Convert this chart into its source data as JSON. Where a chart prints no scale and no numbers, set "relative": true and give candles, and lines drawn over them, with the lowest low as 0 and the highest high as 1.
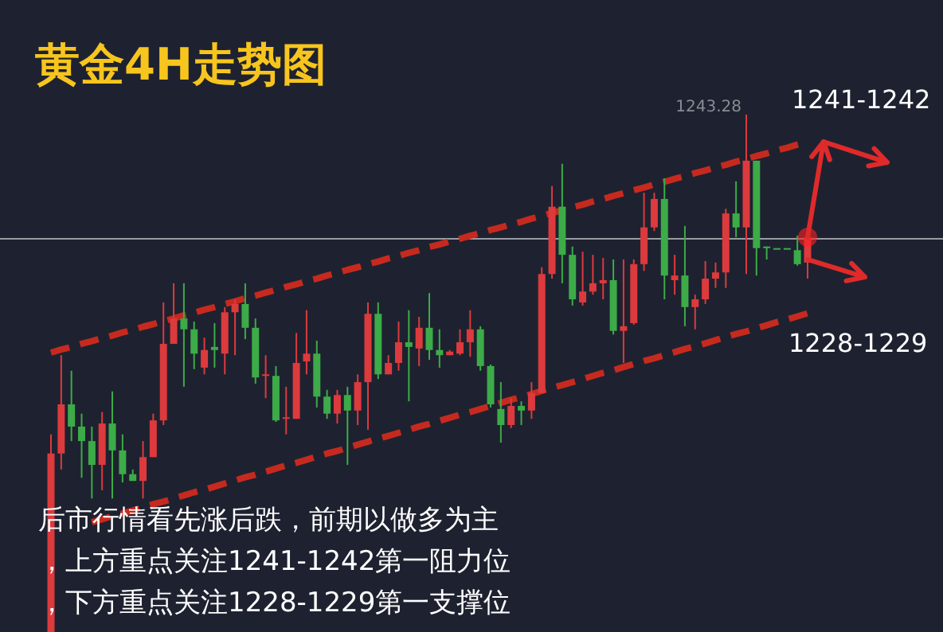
{
  "chart_data": {
    "type": "candlestick",
    "relative": true,
    "title": "黄金4H走势图",
    "tick_labels": false,
    "categories": [
      null,
      null,
      null,
      null,
      null,
      null,
      null,
      null,
      null,
      null,
      null,
      null,
      null,
      null,
      null,
      null,
      null,
      null,
      null,
      null,
      null,
      null,
      null,
      null,
      null,
      null,
      null,
      null,
      null,
      null,
      null,
      null,
      null,
      null,
      null,
      null,
      null,
      null,
      null,
      null,
      null,
      null,
      null,
      null,
      null,
      null,
      null,
      null,
      null,
      null,
      null,
      null,
      null,
      null,
      null,
      null,
      null,
      null,
      null,
      null,
      null,
      null,
      null,
      null,
      null,
      null,
      null,
      null,
      null,
      null,
      null,
      null,
      null,
      null,
      null
    ],
    "ohlc": [
      [
        0,
        0.382,
        0,
        0.345
      ],
      [
        0.345,
        0.535,
        0.314,
        0.44
      ],
      [
        0.44,
        0.505,
        0.369,
        0.397
      ],
      [
        0.397,
        0.422,
        0.298,
        0.369
      ],
      [
        0.369,
        0.397,
        0.258,
        0.323
      ],
      [
        0.323,
        0.425,
        0.274,
        0.403
      ],
      [
        0.403,
        0.465,
        0.258,
        0.351
      ],
      [
        0.351,
        0.382,
        0.289,
        0.305
      ],
      [
        0.305,
        0.314,
        0.292,
        0.292
      ],
      [
        0.292,
        0.369,
        0.258,
        0.338
      ],
      [
        0.338,
        0.422,
        0.338,
        0.409
      ],
      [
        0.409,
        0.637,
        0.4,
        0.557
      ],
      [
        0.557,
        0.674,
        0.557,
        0.606
      ],
      [
        0.606,
        0.674,
        0.474,
        0.585
      ],
      [
        0.585,
        0.6,
        0.508,
        0.538
      ],
      [
        0.511,
        0.569,
        0.498,
        0.545
      ],
      [
        0.551,
        0.597,
        0.511,
        0.545
      ],
      [
        0.538,
        0.628,
        0.498,
        0.618
      ],
      [
        0.618,
        0.643,
        0.535,
        0.634
      ],
      [
        0.634,
        0.674,
        0.566,
        0.588
      ],
      [
        0.588,
        0.606,
        0.48,
        0.492
      ],
      [
        0.495,
        0.535,
        0.452,
        0.498
      ],
      [
        0.495,
        0.514,
        0.406,
        0.409
      ],
      [
        0.412,
        0.474,
        0.382,
        0.415
      ],
      [
        0.412,
        0.578,
        0.412,
        0.52
      ],
      [
        0.523,
        0.622,
        0.498,
        0.538
      ],
      [
        0.538,
        0.563,
        0.434,
        0.455
      ],
      [
        0.455,
        0.468,
        0.412,
        0.422
      ],
      [
        0.422,
        0.468,
        0.403,
        0.458
      ],
      [
        0.458,
        0.474,
        0.323,
        0.428
      ],
      [
        0.428,
        0.498,
        0.4,
        0.483
      ],
      [
        0.483,
        0.637,
        0.391,
        0.615
      ],
      [
        0.615,
        0.637,
        0.489,
        0.498
      ],
      [
        0.498,
        0.535,
        0.498,
        0.52
      ],
      [
        0.52,
        0.6,
        0.505,
        0.56
      ],
      [
        0.56,
        0.622,
        0.446,
        0.551
      ],
      [
        0.548,
        0.609,
        0.514,
        0.588
      ],
      [
        0.588,
        0.655,
        0.526,
        0.545
      ],
      [
        0.545,
        0.585,
        0.511,
        0.535
      ],
      [
        0.535,
        0.545,
        0.535,
        0.542
      ],
      [
        0.538,
        0.585,
        0.535,
        0.56
      ],
      [
        0.56,
        0.622,
        0.532,
        0.585
      ],
      [
        0.585,
        0.591,
        0.505,
        0.514
      ],
      [
        0.514,
        0.517,
        0.434,
        0.44
      ],
      [
        0.431,
        0.483,
        0.366,
        0.4
      ],
      [
        0.4,
        0.452,
        0.394,
        0.437
      ],
      [
        0.437,
        0.446,
        0.4,
        0.428
      ],
      [
        0.428,
        0.483,
        0.412,
        0.462
      ],
      [
        0.462,
        0.705,
        0.462,
        0.692
      ],
      [
        0.692,
        0.862,
        0.683,
        0.822
      ],
      [
        0.822,
        0.905,
        0.674,
        0.729
      ],
      [
        0.729,
        0.745,
        0.631,
        0.643
      ],
      [
        0.637,
        0.735,
        0.631,
        0.658
      ],
      [
        0.658,
        0.729,
        0.652,
        0.674
      ],
      [
        0.674,
        0.723,
        0.643,
        0.68
      ],
      [
        0.68,
        0.72,
        0.575,
        0.582
      ],
      [
        0.582,
        0.72,
        0.52,
        0.591
      ],
      [
        0.597,
        0.72,
        0.594,
        0.711
      ],
      [
        0.711,
        0.849,
        0.698,
        0.782
      ],
      [
        0.782,
        0.849,
        0.775,
        0.837
      ],
      [
        0.837,
        0.877,
        0.643,
        0.689
      ],
      [
        0.68,
        0.729,
        0.652,
        0.689
      ],
      [
        0.689,
        0.785,
        0.591,
        0.628
      ],
      [
        0.628,
        0.652,
        0.585,
        0.643
      ],
      [
        0.643,
        0.717,
        0.634,
        0.683
      ],
      [
        0.683,
        0.714,
        0.665,
        0.695
      ],
      [
        0.695,
        0.818,
        0.665,
        0.809
      ],
      [
        0.809,
        0.871,
        0.763,
        0.782
      ],
      [
        0.782,
        1,
        0.692,
        0.911
      ],
      [
        0.911,
        0.911,
        0.689,
        0.742
      ],
      [
        0.745,
        0.745,
        0.72,
        0.742
      ],
      [
        0.742,
        0.742,
        0.742,
        0.742
      ],
      [
        0.742,
        0.742,
        0.742,
        0.742
      ],
      [
        0.738,
        0.766,
        0.708,
        0.711
      ],
      [
        0.714,
        0.769,
        0.683,
        0.763
      ]
    ],
    "colors": [
      "#dc3a3d",
      "#dc3a3d",
      "#3cab48",
      "#3cab48",
      "#3cab48",
      "#dc3a3d",
      "#3cab48",
      "#3cab48",
      "#3cab48",
      "#dc3a3d",
      "#dc3a3d",
      "#dc3a3d",
      "#dc3a3d",
      "#3cab48",
      "#3cab48",
      "#dc3a3d",
      "#3cab48",
      "#dc3a3d",
      "#dc3a3d",
      "#3cab48",
      "#3cab48",
      "#dc3a3d",
      "#3cab48",
      "#dc3a3d",
      "#dc3a3d",
      "#dc3a3d",
      "#3cab48",
      "#3cab48",
      "#dc3a3d",
      "#3cab48",
      "#dc3a3d",
      "#dc3a3d",
      "#3cab48",
      "#dc3a3d",
      "#dc3a3d",
      "#3cab48",
      "#dc3a3d",
      "#3cab48",
      "#3cab48",
      "#dc3a3d",
      "#dc3a3d",
      "#dc3a3d",
      "#3cab48",
      "#3cab48",
      "#3cab48",
      "#dc3a3d",
      "#3cab48",
      "#dc3a3d",
      "#dc3a3d",
      "#dc3a3d",
      "#3cab48",
      "#3cab48",
      "#dc3a3d",
      "#dc3a3d",
      "#dc3a3d",
      "#3cab48",
      "#dc3a3d",
      "#dc3a3d",
      "#dc3a3d",
      "#dc3a3d",
      "#3cab48",
      "#dc3a3d",
      "#3cab48",
      "#dc3a3d",
      "#dc3a3d",
      "#dc3a3d",
      "#dc3a3d",
      "#3cab48",
      "#dc3a3d",
      "#3cab48",
      "#3cab48",
      "#3cab48",
      "#3cab48",
      "#3cab48",
      "#dc3a3d"
    ],
    "series": [
      {
        "type": "line",
        "values": [
          0.54,
          0.546,
          0.551,
          0.557,
          0.562,
          0.568,
          0.573,
          0.579,
          0.584,
          0.59,
          0.595,
          0.601,
          0.606,
          0.612,
          0.617,
          0.623,
          0.628,
          0.634,
          0.639,
          0.645,
          0.65,
          0.656,
          0.661,
          0.667,
          0.672,
          0.678,
          0.683,
          0.689,
          0.694,
          0.7,
          0.705,
          0.711,
          0.716,
          0.722,
          0.727,
          0.733,
          0.738,
          0.744,
          0.749,
          0.755,
          0.76,
          0.766,
          0.771,
          0.777,
          0.782,
          0.788,
          0.793,
          0.799,
          0.804,
          0.81,
          0.815,
          0.821,
          0.826,
          0.832,
          0.837,
          0.843,
          0.848,
          0.854,
          0.859,
          0.865,
          0.87,
          0.876,
          0.881,
          0.887,
          0.892,
          0.898,
          0.903,
          0.909,
          0.914,
          0.92,
          0.925,
          0.931,
          0.936,
          0.942,
          0.947
        ],
        "color": "#c62a1f",
        "line_style": "dashed"
      },
      {
        "type": "line",
        "values": [
          null,
          null,
          null,
          null,
          0.212,
          0.218,
          0.224,
          0.229,
          0.235,
          0.241,
          0.247,
          0.252,
          0.258,
          0.264,
          0.27,
          0.275,
          0.281,
          0.287,
          0.293,
          0.299,
          0.304,
          0.31,
          0.316,
          0.322,
          0.327,
          0.333,
          0.339,
          0.345,
          0.35,
          0.356,
          0.362,
          0.368,
          0.374,
          0.379,
          0.385,
          0.391,
          0.397,
          0.402,
          0.408,
          0.414,
          0.42,
          0.425,
          0.431,
          0.437,
          0.443,
          0.449,
          0.454,
          0.46,
          0.466,
          0.472,
          0.477,
          0.483,
          0.489,
          0.495,
          0.501,
          0.506,
          0.512,
          0.518,
          0.524,
          0.529,
          0.535,
          0.541,
          0.547,
          0.552,
          0.558,
          0.564,
          0.57,
          0.576,
          0.581,
          0.587,
          0.593,
          0.599,
          0.604,
          0.61,
          0.616
        ],
        "color": "#c62a1f",
        "line_style": "dashed"
      }
    ],
    "ref_lines": [
      {
        "axis": "y",
        "value": 0.76,
        "color": "#9a9ca4"
      }
    ],
    "annotations": [
      "1243.28",
      "1241-1242",
      "1228-1229",
      "后市行情看先涨后跌，前期以做多为主",
      "，上方重点关注1241-1242第一阻力位",
      "，下方重点关注1228-1229第一支撑位"
    ]
  }
}
